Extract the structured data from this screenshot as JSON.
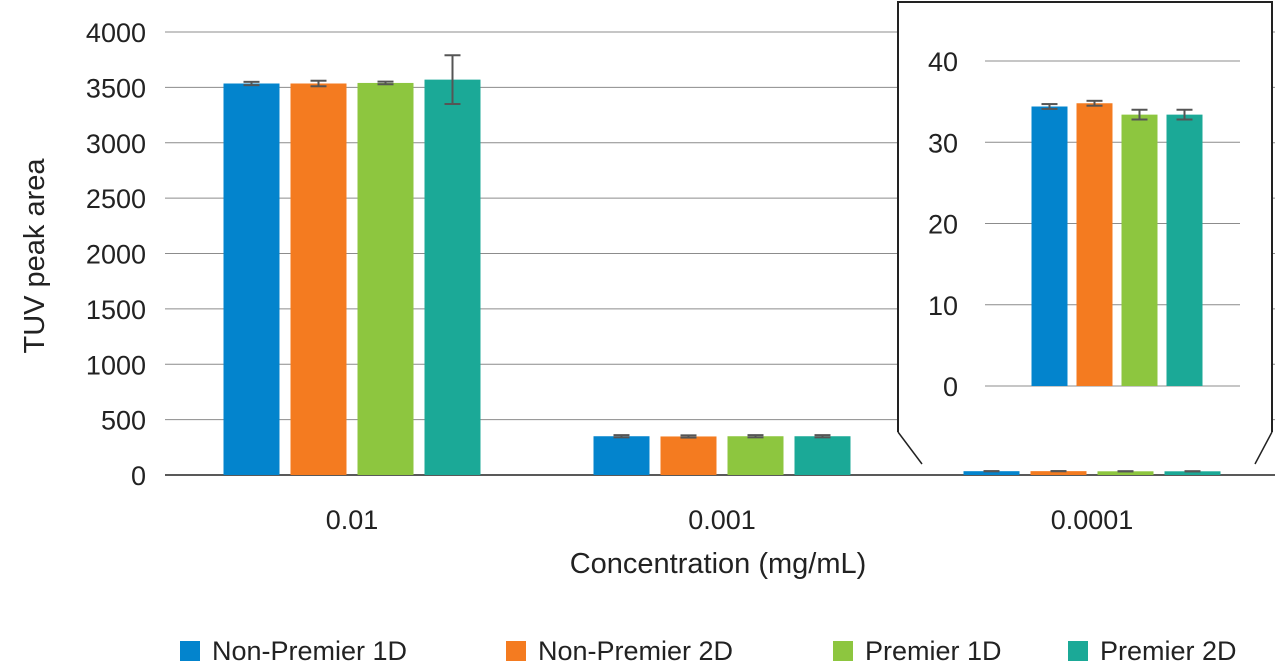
{
  "chart_data": [
    {
      "type": "bar",
      "xlabel": "Concentration (mg/mL)",
      "ylabel": "TUV peak area",
      "ylim": [
        0,
        4000
      ],
      "yticks": [
        0,
        500,
        1000,
        1500,
        2000,
        2500,
        3000,
        3500,
        4000
      ],
      "categories": [
        "0.01",
        "0.001",
        "0.0001"
      ],
      "grid": true,
      "legend_position": "bottom",
      "series": [
        {
          "name": "Non-Premier 1D",
          "color": "#0384cd",
          "values": [
            3535,
            350,
            34.4
          ],
          "errors": [
            15,
            10,
            0.3
          ]
        },
        {
          "name": "Non-Premier 2D",
          "color": "#f47b20",
          "values": [
            3535,
            348,
            34.8
          ],
          "errors": [
            25,
            10,
            0.3
          ]
        },
        {
          "name": "Premier 1D",
          "color": "#8dc63f",
          "values": [
            3540,
            350,
            33.4
          ],
          "errors": [
            12,
            10,
            0.6
          ]
        },
        {
          "name": "Premier 2D",
          "color": "#1ba997",
          "values": [
            3570,
            350,
            33.4
          ],
          "errors": [
            220,
            10,
            0.6
          ]
        }
      ]
    },
    {
      "type": "bar",
      "inset_of": "0.0001",
      "ylim": [
        0,
        40
      ],
      "yticks": [
        0,
        10,
        20,
        30,
        40
      ],
      "grid": true,
      "series": [
        {
          "name": "Non-Premier 1D",
          "color": "#0384cd",
          "values": [
            34.4
          ],
          "errors": [
            0.3
          ]
        },
        {
          "name": "Non-Premier 2D",
          "color": "#f47b20",
          "values": [
            34.8
          ],
          "errors": [
            0.3
          ]
        },
        {
          "name": "Premier 1D",
          "color": "#8dc63f",
          "values": [
            33.4
          ],
          "errors": [
            0.6
          ]
        },
        {
          "name": "Premier 2D",
          "color": "#1ba997",
          "values": [
            33.4
          ],
          "errors": [
            0.6
          ]
        }
      ]
    }
  ]
}
